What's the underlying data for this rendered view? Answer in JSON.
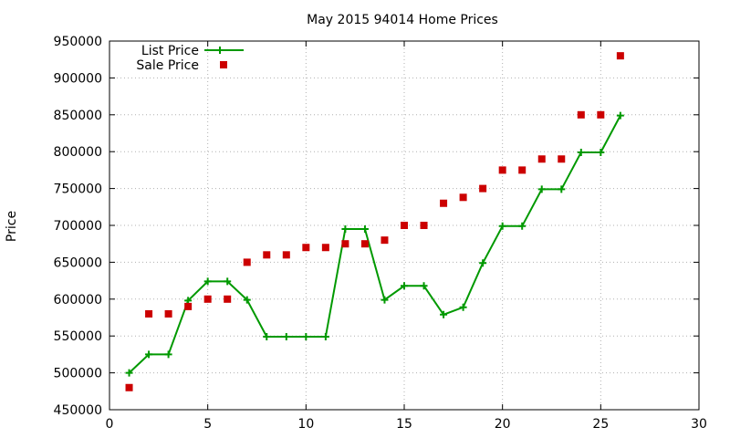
{
  "chart_data": {
    "type": "line",
    "title": "May 2015 94014 Home Prices",
    "xlabel": "",
    "ylabel": "Price",
    "xlim": [
      0,
      30
    ],
    "ylim": [
      450000,
      950000
    ],
    "x_ticks": [
      0,
      5,
      10,
      15,
      20,
      25,
      30
    ],
    "y_ticks": [
      450000,
      500000,
      550000,
      600000,
      650000,
      700000,
      750000,
      800000,
      850000,
      900000,
      950000
    ],
    "grid": true,
    "legend_position": "top-left",
    "series": [
      {
        "name": "List Price",
        "style": "line-with-plus-markers",
        "color": "#009900",
        "x": [
          1,
          2,
          3,
          4,
          5,
          6,
          7,
          8,
          9,
          10,
          11,
          12,
          13,
          14,
          15,
          16,
          17,
          18,
          19,
          20,
          21,
          22,
          23,
          24,
          25,
          26
        ],
        "y": [
          500000,
          525000,
          525000,
          598000,
          624000,
          624000,
          599000,
          549000,
          549000,
          549000,
          549000,
          695000,
          695000,
          599000,
          618000,
          618000,
          579000,
          589000,
          649000,
          699000,
          699000,
          749000,
          749000,
          799000,
          799000,
          849000
        ]
      },
      {
        "name": "Sale Price",
        "style": "square-markers",
        "color": "#cc0000",
        "x": [
          1,
          2,
          3,
          4,
          5,
          6,
          7,
          8,
          9,
          10,
          11,
          12,
          13,
          14,
          15,
          16,
          17,
          18,
          19,
          20,
          21,
          22,
          23,
          24,
          25,
          26
        ],
        "y": [
          480000,
          580000,
          580000,
          590000,
          600000,
          600000,
          650000,
          660000,
          660000,
          670000,
          670000,
          675000,
          675000,
          680000,
          700000,
          700000,
          730000,
          738000,
          750000,
          775000,
          775000,
          790000,
          790000,
          850000,
          850000,
          930000
        ]
      }
    ]
  }
}
